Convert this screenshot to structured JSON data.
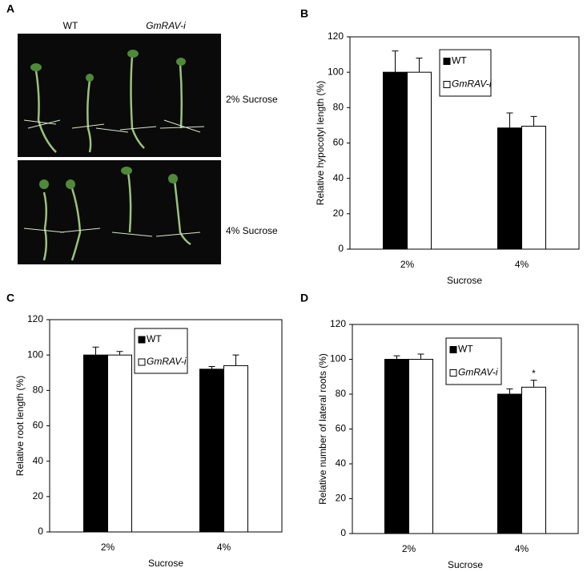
{
  "photo": {
    "panel": "A",
    "columns": [
      "WT",
      "GmRAV-i"
    ],
    "rows": [
      "2% Sucrose",
      "4% Sucrose"
    ]
  },
  "chart_data": [
    {
      "type": "bar",
      "panel": "B",
      "ylabel": "Relative hypocotyl length (%)",
      "xlabel": "Sucrose",
      "categories": [
        "2%",
        "4%"
      ],
      "series": [
        {
          "name": "WT",
          "color": "#000000",
          "values": [
            100,
            68.5
          ],
          "errors": [
            12,
            8.5
          ]
        },
        {
          "name": "GmRAV-i",
          "color": "#ffffff",
          "values": [
            100,
            69.5
          ],
          "errors": [
            8,
            5.5
          ]
        }
      ],
      "ylim": [
        0,
        120
      ],
      "yticks": [
        0,
        20,
        40,
        60,
        80,
        100,
        120
      ]
    },
    {
      "type": "bar",
      "panel": "C",
      "ylabel": "Relative root length (%)",
      "xlabel": "Sucrose",
      "categories": [
        "2%",
        "4%"
      ],
      "series": [
        {
          "name": "WT",
          "color": "#000000",
          "values": [
            100,
            92
          ],
          "errors": [
            4.5,
            1.5
          ]
        },
        {
          "name": "GmRAV-i",
          "color": "#ffffff",
          "values": [
            100,
            94
          ],
          "errors": [
            2,
            6
          ]
        }
      ],
      "ylim": [
        0,
        120
      ],
      "yticks": [
        0,
        20,
        40,
        60,
        80,
        100,
        120
      ]
    },
    {
      "type": "bar",
      "panel": "D",
      "ylabel": "Relative number of lateral roots (%)",
      "xlabel": "Sucrose",
      "categories": [
        "2%",
        "4%"
      ],
      "series": [
        {
          "name": "WT",
          "color": "#000000",
          "values": [
            100,
            80
          ],
          "errors": [
            2,
            3
          ]
        },
        {
          "name": "GmRAV-i",
          "color": "#ffffff",
          "values": [
            100,
            84
          ],
          "errors": [
            3,
            4
          ]
        }
      ],
      "annotation": "*",
      "ylim": [
        0,
        120
      ],
      "yticks": [
        0,
        20,
        40,
        60,
        80,
        100,
        120
      ]
    }
  ]
}
